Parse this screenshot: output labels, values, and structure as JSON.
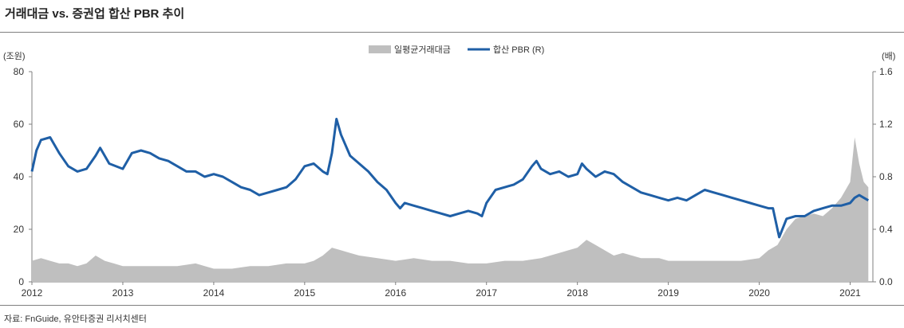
{
  "title": "거래대금 vs. 증권업 합산 PBR 추이",
  "source": "자료: FnGuide, 유안타증권 리서치센터",
  "chart_data": {
    "type": "area+line",
    "left_unit": "(조원)",
    "right_unit": "(배)",
    "ylim_left": [
      0,
      80
    ],
    "ylim_right": [
      0.0,
      1.6
    ],
    "yticks_left": [
      "0",
      "20",
      "40",
      "60",
      "80"
    ],
    "yticks_right": [
      "0.0",
      "0.4",
      "0.8",
      "1.2",
      "1.6"
    ],
    "xticks": [
      "2012",
      "2013",
      "2014",
      "2015",
      "2016",
      "2017",
      "2018",
      "2019",
      "2020",
      "2021"
    ],
    "colors": {
      "volume": "#bfbfbf",
      "pbr": "#1f5fa6"
    },
    "series": [
      {
        "name": "일평균거래대금",
        "axis": "left",
        "type": "area",
        "x": [
          2012.0,
          2012.1,
          2012.2,
          2012.3,
          2012.4,
          2012.5,
          2012.6,
          2012.7,
          2012.8,
          2012.9,
          2013.0,
          2013.2,
          2013.4,
          2013.6,
          2013.8,
          2014.0,
          2014.2,
          2014.4,
          2014.6,
          2014.8,
          2015.0,
          2015.1,
          2015.2,
          2015.3,
          2015.4,
          2015.5,
          2015.6,
          2015.8,
          2016.0,
          2016.2,
          2016.4,
          2016.6,
          2016.8,
          2017.0,
          2017.2,
          2017.4,
          2017.6,
          2017.8,
          2017.9,
          2018.0,
          2018.1,
          2018.2,
          2018.3,
          2018.4,
          2018.5,
          2018.7,
          2018.9,
          2019.0,
          2019.2,
          2019.4,
          2019.6,
          2019.8,
          2020.0,
          2020.1,
          2020.2,
          2020.3,
          2020.4,
          2020.5,
          2020.6,
          2020.7,
          2020.8,
          2020.9,
          2021.0,
          2021.05,
          2021.1,
          2021.15,
          2021.2
        ],
        "values": [
          8,
          9,
          8,
          7,
          7,
          6,
          7,
          10,
          8,
          7,
          6,
          6,
          6,
          6,
          7,
          5,
          5,
          6,
          6,
          7,
          7,
          8,
          10,
          13,
          12,
          11,
          10,
          9,
          8,
          9,
          8,
          8,
          7,
          7,
          8,
          8,
          9,
          11,
          12,
          13,
          16,
          14,
          12,
          10,
          11,
          9,
          9,
          8,
          8,
          8,
          8,
          8,
          9,
          12,
          14,
          20,
          24,
          25,
          26,
          25,
          28,
          32,
          38,
          55,
          45,
          38,
          36
        ]
      },
      {
        "name": "합산 PBR (R)",
        "axis": "right",
        "type": "line",
        "x": [
          2012.0,
          2012.05,
          2012.1,
          2012.2,
          2012.3,
          2012.4,
          2012.5,
          2012.6,
          2012.7,
          2012.75,
          2012.85,
          2013.0,
          2013.05,
          2013.1,
          2013.2,
          2013.3,
          2013.4,
          2013.5,
          2013.6,
          2013.7,
          2013.8,
          2013.9,
          2014.0,
          2014.1,
          2014.2,
          2014.3,
          2014.4,
          2014.5,
          2014.6,
          2014.7,
          2014.8,
          2014.9,
          2015.0,
          2015.1,
          2015.2,
          2015.25,
          2015.3,
          2015.35,
          2015.4,
          2015.5,
          2015.6,
          2015.7,
          2015.8,
          2015.9,
          2016.0,
          2016.05,
          2016.1,
          2016.2,
          2016.3,
          2016.4,
          2016.5,
          2016.6,
          2016.7,
          2016.8,
          2016.9,
          2016.95,
          2017.0,
          2017.1,
          2017.2,
          2017.3,
          2017.4,
          2017.5,
          2017.55,
          2017.6,
          2017.7,
          2017.8,
          2017.9,
          2018.0,
          2018.05,
          2018.1,
          2018.2,
          2018.3,
          2018.4,
          2018.5,
          2018.6,
          2018.7,
          2018.8,
          2018.9,
          2019.0,
          2019.1,
          2019.2,
          2019.3,
          2019.4,
          2019.5,
          2019.6,
          2019.7,
          2019.8,
          2019.9,
          2020.0,
          2020.1,
          2020.15,
          2020.2,
          2020.22,
          2020.3,
          2020.4,
          2020.5,
          2020.6,
          2020.7,
          2020.8,
          2020.9,
          2021.0,
          2021.05,
          2021.1,
          2021.15,
          2021.2
        ],
        "values": [
          0.84,
          1.0,
          1.08,
          1.1,
          0.98,
          0.88,
          0.84,
          0.86,
          0.96,
          1.02,
          0.9,
          0.86,
          0.92,
          0.98,
          1.0,
          0.98,
          0.94,
          0.92,
          0.88,
          0.84,
          0.84,
          0.8,
          0.82,
          0.8,
          0.76,
          0.72,
          0.7,
          0.66,
          0.68,
          0.7,
          0.72,
          0.78,
          0.88,
          0.9,
          0.84,
          0.82,
          0.98,
          1.24,
          1.12,
          0.96,
          0.9,
          0.84,
          0.76,
          0.7,
          0.6,
          0.56,
          0.6,
          0.58,
          0.56,
          0.54,
          0.52,
          0.5,
          0.52,
          0.54,
          0.52,
          0.5,
          0.6,
          0.7,
          0.72,
          0.74,
          0.78,
          0.88,
          0.92,
          0.86,
          0.82,
          0.84,
          0.8,
          0.82,
          0.9,
          0.86,
          0.8,
          0.84,
          0.82,
          0.76,
          0.72,
          0.68,
          0.66,
          0.64,
          0.62,
          0.64,
          0.62,
          0.66,
          0.7,
          0.68,
          0.66,
          0.64,
          0.62,
          0.6,
          0.58,
          0.56,
          0.56,
          0.4,
          0.34,
          0.48,
          0.5,
          0.5,
          0.54,
          0.56,
          0.58,
          0.58,
          0.6,
          0.64,
          0.66,
          0.64,
          0.62
        ]
      }
    ]
  }
}
